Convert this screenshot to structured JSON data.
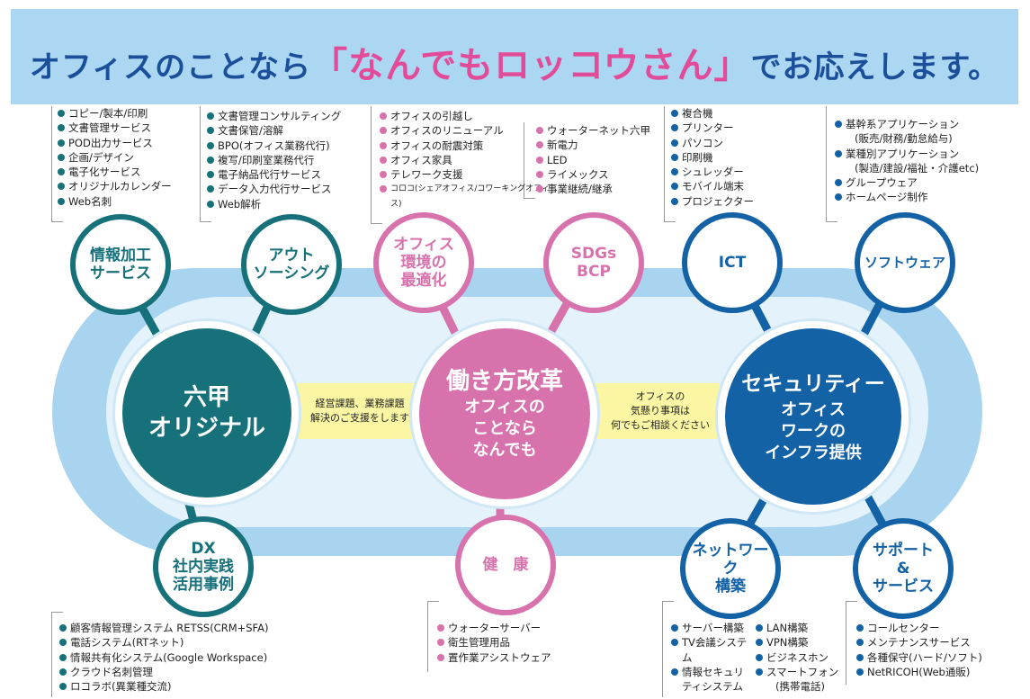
{
  "banner": {
    "part1": "オフィスのことなら",
    "quote": "「なんでもロッコウさん」",
    "part2": "でお応えします。"
  },
  "colors": {
    "teal": "#17717b",
    "pink": "#d872ad",
    "blue": "#1462a6",
    "banner": "#abd7f2",
    "band": "#fbf6a4"
  },
  "center": {
    "rokko": {
      "l1": "六甲",
      "l2": "オリジナル"
    },
    "work": {
      "l1": "働き方改革",
      "l2": "オフィスの",
      "l3": "ことなら",
      "l4": "なんでも"
    },
    "security": {
      "l1": "セキュリティー",
      "l2": "オフィス",
      "l3": "ワークの",
      "l4": "インフラ提供"
    }
  },
  "bands": {
    "left": {
      "l1": "経営課題、業務課題",
      "l2": "解決のご支援をします"
    },
    "right": {
      "l1": "オフィスの",
      "l2": "気懸り事項は",
      "l3": "何でもご相談ください"
    }
  },
  "nodes": {
    "joho": {
      "l1": "情報加工",
      "l2": "サービス",
      "items": [
        "コピー/製本/印刷",
        "文書管理サービス",
        "POD出力サービス",
        "企画/デザイン",
        "電子化サービス",
        "オリジナルカレンダー",
        "Web名刺"
      ]
    },
    "outsourcing": {
      "l1": "アウト",
      "l2": "ソーシング",
      "items": [
        "文書管理コンサルティング",
        "文書保管/溶解",
        "BPO(オフィス業務代行)",
        "複写/印刷室業務代行",
        "電子納品代行サービス",
        "データ入力代行サービス",
        "Web解析"
      ]
    },
    "office": {
      "l1": "オフィス",
      "l2": "環境の",
      "l3": "最適化",
      "items": [
        "オフィスの引越し",
        "オフィスのリニューアル",
        "オフィスの耐震対策",
        "オフィス家具",
        "テレワーク支援",
        "コロコ(シェアオフィス/コワーキングオフィ"
      ],
      "item_cont": "ス)"
    },
    "sdgs": {
      "l1": "SDGs",
      "l2": "BCP",
      "items": [
        "ウォーターネット六甲",
        "新電力",
        "LED",
        "ライメックス",
        "事業継続/継承"
      ]
    },
    "ict": {
      "l1": "ICT",
      "items": [
        "複合機",
        "プリンター",
        "パソコン",
        "印刷機",
        "シュレッダー",
        "モバイル端末",
        "プロジェクター"
      ]
    },
    "software": {
      "l1": "ソフトウェア",
      "items": [
        "基幹系アプリケーション",
        "業種別アプリケーション",
        "グループウェア",
        "ホームページ制作"
      ],
      "subs": [
        "(販売/財務/勤怠給与)",
        "(製造/建設/福祉・介護etc)"
      ]
    },
    "dx": {
      "l1": "DX",
      "l2": "社内実践",
      "l3": "活用事例",
      "items": [
        "顧客情報管理システム RETSS(CRM+SFA)",
        "電話システム(RTネット)",
        "情報共有化システム(Google Workspace)",
        "クラウド名刺管理",
        "ロコラボ(異業種交流)"
      ]
    },
    "kenko": {
      "l1": "健　康",
      "items": [
        "ウォーターサーバー",
        "衛生管理用品",
        "置作業アシストウェア"
      ]
    },
    "network": {
      "l1": "ネットワーク",
      "l2": "構築",
      "items_a": [
        "サーバー構築",
        "TV会議システ",
        "情報セキュリ"
      ],
      "cont_a": [
        "ム",
        "ティシステム"
      ],
      "items_b": [
        "LAN構築",
        "VPN構築",
        "ビジネスホン",
        "スマートフォン"
      ],
      "cont_b": "(携帯電話)"
    },
    "support": {
      "l1": "サポート",
      "l2": "&",
      "l3": "サービス",
      "items": [
        "コールセンター",
        "メンテナンスサービス",
        "各種保守(ハード/ソフト)",
        "NetRICOH(Web通販)"
      ]
    }
  }
}
